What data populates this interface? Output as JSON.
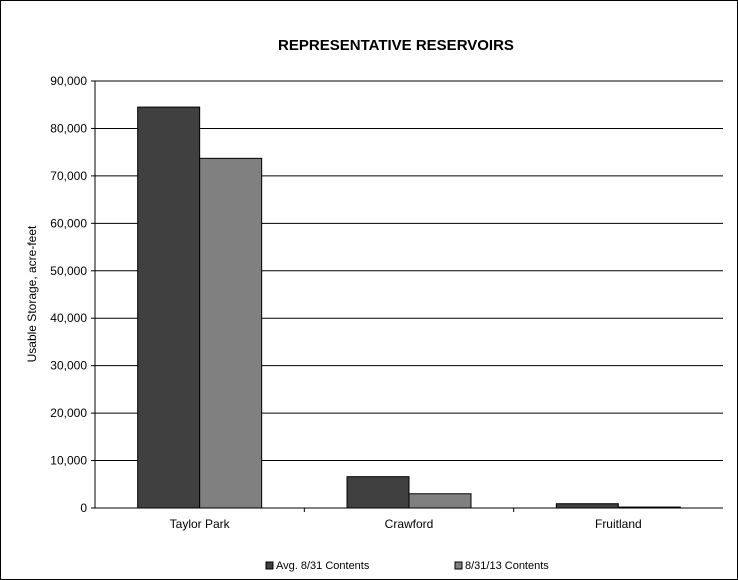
{
  "chart_data": {
    "type": "bar",
    "title": "REPRESENTATIVE RESERVOIRS",
    "ylabel": "Usable Storage, acre-feet",
    "xlabel": "",
    "ylim": [
      0,
      90000
    ],
    "yticks": [
      0,
      10000,
      20000,
      30000,
      40000,
      50000,
      60000,
      70000,
      80000,
      90000
    ],
    "ytick_labels": [
      "0",
      "10,000",
      "20,000",
      "30,000",
      "40,000",
      "50,000",
      "60,000",
      "70,000",
      "80,000",
      "90,000"
    ],
    "grid": true,
    "legend_position": "bottom",
    "categories": [
      "Taylor Park",
      "Crawford",
      "Fruitland"
    ],
    "series": [
      {
        "name": "Avg. 8/31 Contents",
        "color": "#404040",
        "values": [
          84500,
          6600,
          900
        ]
      },
      {
        "name": "8/31/13 Contents",
        "color": "#808080",
        "values": [
          73700,
          3000,
          200
        ]
      }
    ]
  }
}
